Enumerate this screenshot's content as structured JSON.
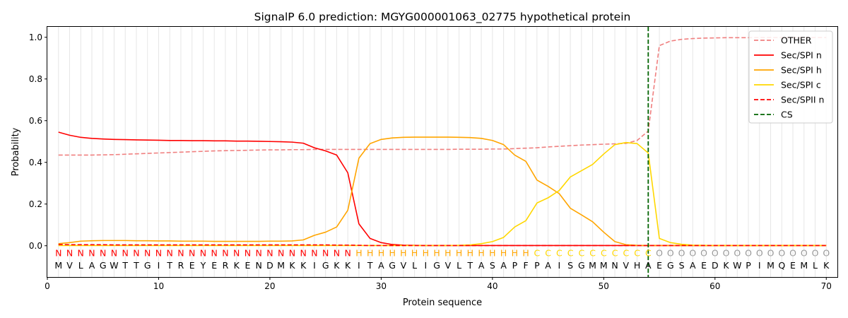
{
  "chart_data": {
    "type": "line",
    "title": "SignalP 6.0 prediction: MGYG000001063_02775 hypothetical protein",
    "xlabel": "Protein sequence",
    "ylabel": "Probability",
    "xlim": [
      0,
      71
    ],
    "ylim": [
      -0.15,
      1.05
    ],
    "xticks": [
      0,
      10,
      20,
      30,
      40,
      50,
      60,
      70
    ],
    "yticks": [
      0.0,
      0.2,
      0.4,
      0.6,
      0.8,
      1.0
    ],
    "grid": "vertical lines at each residue",
    "legend_position": "top-right",
    "sequence": [
      "M",
      "V",
      "L",
      "A",
      "G",
      "W",
      "T",
      "T",
      "G",
      "I",
      "T",
      "R",
      "E",
      "Y",
      "E",
      "R",
      "K",
      "E",
      "N",
      "D",
      "M",
      "K",
      "K",
      "I",
      "G",
      "K",
      "K",
      "I",
      "T",
      "A",
      "G",
      "V",
      "L",
      "I",
      "G",
      "V",
      "L",
      "T",
      "A",
      "S",
      "A",
      "P",
      "F",
      "P",
      "A",
      "I",
      "S",
      "G",
      "M",
      "M",
      "N",
      "V",
      "H",
      "A",
      "E",
      "G",
      "S",
      "A",
      "E",
      "D",
      "K",
      "W",
      "P",
      "I",
      "M",
      "Q",
      "E",
      "M",
      "L",
      "K"
    ],
    "labels": [
      "N",
      "N",
      "N",
      "N",
      "N",
      "N",
      "N",
      "N",
      "N",
      "N",
      "N",
      "N",
      "N",
      "N",
      "N",
      "N",
      "N",
      "N",
      "N",
      "N",
      "N",
      "N",
      "N",
      "N",
      "N",
      "N",
      "N",
      "H",
      "H",
      "H",
      "H",
      "H",
      "H",
      "H",
      "H",
      "H",
      "H",
      "H",
      "H",
      "H",
      "H",
      "H",
      "H",
      "C",
      "C",
      "C",
      "C",
      "C",
      "C",
      "C",
      "C",
      "C",
      "C",
      "C",
      "O",
      "O",
      "O",
      "O",
      "O",
      "O",
      "O",
      "O",
      "O",
      "O",
      "O",
      "O",
      "O",
      "O",
      "O",
      "O"
    ],
    "label_colors": {
      "N": "#ff0000",
      "H": "#ffa500",
      "C": "#ffd700",
      "O": "#999999"
    },
    "cs_position": 54,
    "series": [
      {
        "name": "OTHER",
        "color": "#f08080",
        "dash": "dashed",
        "values": [
          0.435,
          0.435,
          0.435,
          0.435,
          0.436,
          0.437,
          0.439,
          0.441,
          0.443,
          0.445,
          0.447,
          0.449,
          0.451,
          0.453,
          0.455,
          0.456,
          0.457,
          0.458,
          0.459,
          0.46,
          0.46,
          0.461,
          0.461,
          0.462,
          0.462,
          0.462,
          0.462,
          0.462,
          0.462,
          0.462,
          0.462,
          0.462,
          0.462,
          0.462,
          0.462,
          0.462,
          0.463,
          0.463,
          0.463,
          0.464,
          0.464,
          0.466,
          0.468,
          0.47,
          0.474,
          0.477,
          0.48,
          0.483,
          0.485,
          0.487,
          0.489,
          0.491,
          0.505,
          0.55,
          0.96,
          0.982,
          0.99,
          0.994,
          0.996,
          0.997,
          0.998,
          0.998,
          0.998,
          0.999,
          0.999,
          0.999,
          0.999,
          0.999,
          0.999,
          0.999
        ]
      },
      {
        "name": "Sec/SPI n",
        "color": "#ff0000",
        "dash": "solid",
        "values": [
          0.545,
          0.53,
          0.52,
          0.515,
          0.512,
          0.51,
          0.509,
          0.508,
          0.507,
          0.506,
          0.505,
          0.505,
          0.504,
          0.504,
          0.503,
          0.503,
          0.502,
          0.502,
          0.501,
          0.5,
          0.499,
          0.497,
          0.492,
          0.47,
          0.455,
          0.435,
          0.35,
          0.105,
          0.035,
          0.015,
          0.006,
          0.003,
          0.002,
          0.001,
          0.001,
          0.001,
          0.001,
          0.001,
          0.001,
          0.001,
          0.001,
          0.001,
          0.001,
          0.001,
          0.001,
          0.001,
          0.001,
          0.001,
          0.001,
          0.001,
          0.001,
          0.001,
          0.001,
          0.001,
          0.001,
          0.001,
          0.001,
          0.001,
          0.001,
          0.001,
          0.001,
          0.001,
          0.001,
          0.001,
          0.001,
          0.001,
          0.001,
          0.001,
          0.001,
          0.001
        ]
      },
      {
        "name": "Sec/SPI h",
        "color": "#ffa500",
        "dash": "solid",
        "values": [
          0.01,
          0.015,
          0.022,
          0.024,
          0.025,
          0.025,
          0.025,
          0.024,
          0.024,
          0.023,
          0.023,
          0.022,
          0.022,
          0.022,
          0.021,
          0.021,
          0.021,
          0.021,
          0.021,
          0.022,
          0.022,
          0.023,
          0.028,
          0.05,
          0.065,
          0.09,
          0.17,
          0.42,
          0.49,
          0.51,
          0.517,
          0.52,
          0.521,
          0.521,
          0.521,
          0.521,
          0.52,
          0.519,
          0.515,
          0.505,
          0.485,
          0.435,
          0.405,
          0.315,
          0.285,
          0.25,
          0.18,
          0.148,
          0.115,
          0.065,
          0.02,
          0.005,
          0.002,
          0.001,
          0.001,
          0.001,
          0.001,
          0.001,
          0.001,
          0.001,
          0.001,
          0.001,
          0.001,
          0.001,
          0.001,
          0.001,
          0.001,
          0.001,
          0.001,
          0.001
        ]
      },
      {
        "name": "Sec/SPI c",
        "color": "#ffd700",
        "dash": "solid",
        "values": [
          0.001,
          0.001,
          0.001,
          0.001,
          0.001,
          0.001,
          0.001,
          0.001,
          0.001,
          0.001,
          0.001,
          0.001,
          0.001,
          0.001,
          0.001,
          0.001,
          0.001,
          0.001,
          0.001,
          0.001,
          0.001,
          0.001,
          0.001,
          0.001,
          0.001,
          0.001,
          0.001,
          0.001,
          0.001,
          0.001,
          0.001,
          0.001,
          0.001,
          0.001,
          0.001,
          0.001,
          0.002,
          0.004,
          0.01,
          0.02,
          0.04,
          0.09,
          0.12,
          0.205,
          0.23,
          0.265,
          0.33,
          0.36,
          0.39,
          0.44,
          0.485,
          0.495,
          0.49,
          0.445,
          0.035,
          0.015,
          0.007,
          0.003,
          0.002,
          0.001,
          0.001,
          0.001,
          0.001,
          0.001,
          0.001,
          0.001,
          0.001,
          0.001,
          0.001,
          0.001
        ]
      },
      {
        "name": "Sec/SPII n",
        "color": "#ff0000",
        "dash": "dashed",
        "values": [
          0.006,
          0.005,
          0.005,
          0.005,
          0.005,
          0.004,
          0.004,
          0.004,
          0.004,
          0.004,
          0.004,
          0.004,
          0.004,
          0.004,
          0.004,
          0.004,
          0.004,
          0.004,
          0.004,
          0.004,
          0.004,
          0.004,
          0.004,
          0.004,
          0.004,
          0.003,
          0.003,
          0.002,
          0.001,
          0.001,
          0.001,
          0.001,
          0.001,
          0.001,
          0.001,
          0.001,
          0.001,
          0.001,
          0.001,
          0.001,
          0.001,
          0.001,
          0.001,
          0.001,
          0.001,
          0.001,
          0.001,
          0.001,
          0.001,
          0.001,
          0.001,
          0.001,
          0.001,
          0.001,
          0.001,
          0.001,
          0.001,
          0.001,
          0.001,
          0.001,
          0.001,
          0.001,
          0.001,
          0.001,
          0.001,
          0.001,
          0.001,
          0.001,
          0.001,
          0.001
        ]
      }
    ],
    "legend": [
      {
        "label": "OTHER",
        "color": "#f08080",
        "dash": "dashed"
      },
      {
        "label": "Sec/SPI n",
        "color": "#ff0000",
        "dash": "solid"
      },
      {
        "label": "Sec/SPI h",
        "color": "#ffa500",
        "dash": "solid"
      },
      {
        "label": "Sec/SPI c",
        "color": "#ffd700",
        "dash": "solid"
      },
      {
        "label": "Sec/SPII n",
        "color": "#ff0000",
        "dash": "dashed"
      },
      {
        "label": "CS",
        "color": "#006400",
        "dash": "dashed"
      }
    ]
  }
}
